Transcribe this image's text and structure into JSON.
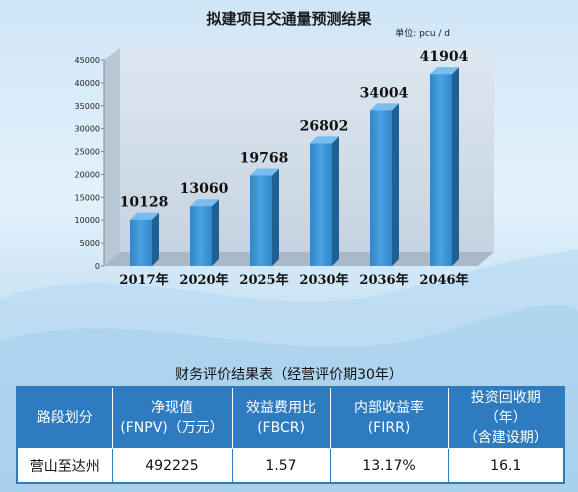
{
  "chart_data": {
    "type": "bar",
    "title": "拟建项目交通量预测结果",
    "unit": "单位: pcu / d",
    "categories": [
      "2017年",
      "2020年",
      "2025年",
      "2030年",
      "2036年",
      "2046年"
    ],
    "values": [
      10128,
      13060,
      19768,
      26802,
      34004,
      41904
    ],
    "value_labels": [
      "10128",
      "13060",
      "19768",
      "26802",
      "34004",
      "41904"
    ],
    "ylim": [
      0,
      45000
    ],
    "yticks": [
      "0",
      "5000",
      "10000",
      "15000",
      "20000",
      "25000",
      "30000",
      "35000",
      "40000",
      "45000"
    ],
    "grid": false,
    "bar_color": "#3b93d6"
  },
  "table": {
    "title": "财务评价结果表（经营评价期30年）",
    "headers": [
      [
        "路段划分"
      ],
      [
        "净现值",
        "(FNPV)（万元）"
      ],
      [
        "效益费用比",
        "(FBCR)"
      ],
      [
        "内部收益率",
        "(FIRR)"
      ],
      [
        "投资回收期（年）",
        "（含建设期）"
      ]
    ],
    "rows": [
      [
        "营山至达州",
        "492225",
        "1.57",
        "13.17%",
        "16.1"
      ]
    ]
  }
}
